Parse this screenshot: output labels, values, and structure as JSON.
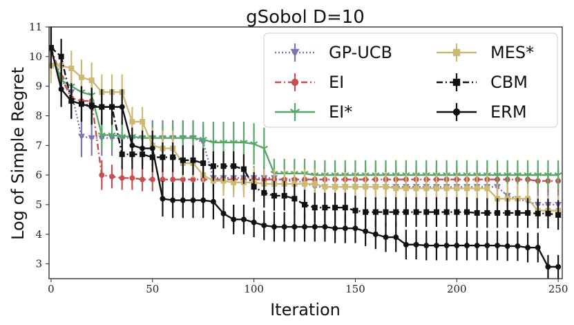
{
  "chart_data": {
    "type": "line",
    "title": "gSobol D=10",
    "xlabel": "Iteration",
    "ylabel": "Log of Simple Regret",
    "xlim": [
      -1,
      252
    ],
    "ylim": [
      2.5,
      11
    ],
    "xticks": [
      0,
      50,
      100,
      150,
      200,
      250
    ],
    "yticks": [
      3,
      4,
      5,
      6,
      7,
      8,
      9,
      10,
      11
    ],
    "legend_position": "top-right",
    "series": [
      {
        "name": "GP-UCB",
        "color": "#8172b2",
        "dash": "dotted",
        "marker": "triangle-down",
        "x": [
          0,
          5,
          10,
          15,
          20,
          25,
          30,
          35,
          40,
          45,
          50,
          55,
          60,
          65,
          70,
          75,
          80,
          85,
          90,
          95,
          100,
          105,
          110,
          115,
          120,
          125,
          130,
          135,
          140,
          145,
          150,
          155,
          160,
          165,
          170,
          175,
          180,
          185,
          190,
          195,
          200,
          205,
          210,
          215,
          220,
          225,
          230,
          235,
          240,
          245,
          250
        ],
        "y": [
          10.2,
          9.2,
          8.8,
          7.3,
          7.25,
          7.25,
          7.25,
          7.25,
          7.25,
          7.25,
          7.25,
          7.25,
          7.25,
          7.25,
          7.25,
          7.1,
          5.9,
          5.9,
          5.9,
          5.9,
          5.9,
          5.9,
          5.9,
          5.8,
          5.8,
          5.75,
          5.6,
          5.6,
          5.6,
          5.6,
          5.6,
          5.6,
          5.6,
          5.6,
          5.6,
          5.6,
          5.6,
          5.6,
          5.6,
          5.6,
          5.6,
          5.6,
          5.6,
          5.6,
          5.6,
          5.3,
          5.2,
          5.1,
          5.0,
          5.0,
          5.0
        ],
        "err": [
          0.8,
          0.6,
          0.7,
          0.7,
          0.6,
          0.6,
          0.6,
          0.6,
          0.6,
          0.6,
          0.6,
          0.6,
          0.6,
          0.6,
          0.6,
          0.6,
          0.4,
          0.4,
          0.4,
          0.4,
          0.4,
          0.4,
          0.4,
          0.4,
          0.4,
          0.4,
          0.4,
          0.4,
          0.4,
          0.4,
          0.4,
          0.4,
          0.4,
          0.4,
          0.4,
          0.4,
          0.4,
          0.4,
          0.4,
          0.4,
          0.4,
          0.4,
          0.4,
          0.4,
          0.4,
          0.4,
          0.4,
          0.4,
          0.4,
          0.4,
          0.4
        ]
      },
      {
        "name": "EI",
        "color": "#c44e52",
        "dash": "dashdot",
        "marker": "circle",
        "x": [
          0,
          5,
          10,
          15,
          20,
          25,
          30,
          35,
          40,
          45,
          50,
          55,
          60,
          65,
          70,
          75,
          80,
          85,
          90,
          95,
          100,
          105,
          110,
          115,
          120,
          125,
          130,
          135,
          140,
          145,
          150,
          155,
          160,
          165,
          170,
          175,
          180,
          185,
          190,
          195,
          200,
          205,
          210,
          215,
          220,
          225,
          230,
          235,
          240,
          245,
          250
        ],
        "y": [
          10.3,
          9.3,
          8.6,
          8.5,
          8.5,
          6.0,
          5.95,
          5.9,
          5.9,
          5.85,
          5.85,
          5.85,
          5.85,
          5.85,
          5.85,
          5.85,
          5.85,
          5.85,
          5.85,
          5.85,
          5.85,
          5.85,
          5.85,
          5.85,
          5.85,
          5.85,
          5.85,
          5.85,
          5.85,
          5.85,
          5.85,
          5.85,
          5.85,
          5.85,
          5.85,
          5.85,
          5.85,
          5.85,
          5.85,
          5.85,
          5.85,
          5.85,
          5.85,
          5.85,
          5.85,
          5.85,
          5.85,
          5.85,
          5.8,
          5.8,
          5.8
        ],
        "err": [
          0.6,
          0.5,
          0.5,
          0.5,
          0.5,
          0.5,
          0.4,
          0.4,
          0.4,
          0.4,
          0.4,
          0.4,
          0.4,
          0.4,
          0.4,
          0.4,
          0.4,
          0.4,
          0.4,
          0.4,
          0.4,
          0.4,
          0.4,
          0.4,
          0.4,
          0.4,
          0.4,
          0.4,
          0.4,
          0.4,
          0.4,
          0.4,
          0.4,
          0.4,
          0.4,
          0.4,
          0.4,
          0.4,
          0.4,
          0.4,
          0.4,
          0.4,
          0.4,
          0.4,
          0.4,
          0.4,
          0.4,
          0.4,
          0.4,
          0.4,
          0.4
        ]
      },
      {
        "name": "EI*",
        "color": "#55a868",
        "dash": "solid",
        "marker": "tri",
        "x": [
          0,
          5,
          10,
          15,
          20,
          25,
          30,
          35,
          40,
          45,
          50,
          55,
          60,
          65,
          70,
          75,
          80,
          85,
          90,
          95,
          100,
          105,
          110,
          115,
          120,
          125,
          130,
          135,
          140,
          145,
          150,
          155,
          160,
          165,
          170,
          175,
          180,
          185,
          190,
          195,
          200,
          205,
          210,
          215,
          220,
          225,
          230,
          235,
          240,
          245,
          250
        ],
        "y": [
          10.2,
          9.2,
          9.0,
          8.8,
          8.7,
          7.35,
          7.35,
          7.3,
          7.3,
          7.25,
          7.25,
          7.25,
          7.25,
          7.25,
          7.25,
          7.2,
          7.1,
          7.1,
          7.1,
          7.1,
          7.05,
          6.9,
          6.05,
          6.05,
          6.05,
          6.05,
          6.0,
          6.0,
          6.0,
          6.0,
          6.0,
          6.0,
          6.0,
          6.0,
          6.0,
          6.0,
          6.0,
          6.0,
          6.0,
          6.0,
          6.0,
          6.0,
          6.0,
          6.0,
          6.0,
          6.0,
          6.0,
          6.0,
          6.0,
          6.0,
          6.0
        ],
        "err": [
          0.6,
          0.5,
          0.5,
          0.5,
          0.5,
          0.5,
          0.5,
          0.5,
          0.5,
          0.5,
          0.5,
          0.5,
          0.5,
          0.5,
          0.5,
          0.6,
          0.7,
          0.7,
          0.7,
          0.7,
          0.7,
          0.7,
          0.5,
          0.5,
          0.5,
          0.5,
          0.5,
          0.5,
          0.5,
          0.5,
          0.5,
          0.5,
          0.5,
          0.5,
          0.5,
          0.5,
          0.5,
          0.5,
          0.5,
          0.5,
          0.5,
          0.5,
          0.5,
          0.5,
          0.5,
          0.5,
          0.5,
          0.5,
          0.5,
          0.5,
          0.5
        ]
      },
      {
        "name": "MES*",
        "color": "#ccb974",
        "dash": "solid",
        "marker": "square",
        "x": [
          0,
          5,
          10,
          15,
          20,
          25,
          30,
          35,
          40,
          45,
          50,
          55,
          60,
          65,
          70,
          75,
          80,
          85,
          90,
          95,
          100,
          105,
          110,
          115,
          120,
          125,
          130,
          135,
          140,
          145,
          150,
          155,
          160,
          165,
          170,
          175,
          180,
          185,
          190,
          195,
          200,
          205,
          210,
          215,
          220,
          225,
          230,
          235,
          240,
          245,
          250
        ],
        "y": [
          9.7,
          9.7,
          9.6,
          9.3,
          9.2,
          8.8,
          8.8,
          8.8,
          7.8,
          7.8,
          7.0,
          6.9,
          6.9,
          6.4,
          6.4,
          6.0,
          5.8,
          5.8,
          5.75,
          5.75,
          5.75,
          5.7,
          5.7,
          5.7,
          5.7,
          5.7,
          5.7,
          5.6,
          5.6,
          5.6,
          5.6,
          5.6,
          5.6,
          5.6,
          5.55,
          5.55,
          5.55,
          5.55,
          5.55,
          5.55,
          5.55,
          5.55,
          5.55,
          5.55,
          5.2,
          5.2,
          5.2,
          5.2,
          4.8,
          4.8,
          4.8
        ],
        "err": [
          0.6,
          0.6,
          0.6,
          0.6,
          0.6,
          0.6,
          0.6,
          0.6,
          0.5,
          0.5,
          0.6,
          0.6,
          0.6,
          0.5,
          0.5,
          0.5,
          0.5,
          0.5,
          0.5,
          0.5,
          0.5,
          0.5,
          0.5,
          0.5,
          0.5,
          0.5,
          0.5,
          0.5,
          0.5,
          0.5,
          0.5,
          0.5,
          0.5,
          0.5,
          0.5,
          0.5,
          0.5,
          0.5,
          0.5,
          0.5,
          0.5,
          0.5,
          0.5,
          0.5,
          0.5,
          0.5,
          0.5,
          0.5,
          0.5,
          0.5,
          0.5
        ]
      },
      {
        "name": "CBM",
        "color": "#111111",
        "dash": "dashdot",
        "marker": "square",
        "x": [
          0,
          5,
          10,
          15,
          20,
          25,
          30,
          35,
          40,
          45,
          50,
          55,
          60,
          65,
          70,
          75,
          80,
          85,
          90,
          95,
          100,
          105,
          110,
          115,
          120,
          125,
          130,
          135,
          140,
          145,
          150,
          155,
          160,
          165,
          170,
          175,
          180,
          185,
          190,
          195,
          200,
          205,
          210,
          215,
          220,
          225,
          230,
          235,
          240,
          245,
          250
        ],
        "y": [
          10.3,
          10.0,
          8.5,
          8.4,
          8.35,
          8.3,
          8.3,
          6.7,
          6.7,
          6.7,
          6.6,
          6.6,
          6.6,
          6.5,
          6.5,
          6.4,
          6.3,
          6.3,
          6.3,
          6.2,
          5.6,
          5.4,
          5.3,
          5.3,
          5.2,
          5.0,
          4.9,
          4.9,
          4.9,
          4.9,
          4.8,
          4.75,
          4.75,
          4.75,
          4.75,
          4.75,
          4.75,
          4.75,
          4.75,
          4.75,
          4.75,
          4.75,
          4.72,
          4.72,
          4.72,
          4.72,
          4.72,
          4.72,
          4.7,
          4.7,
          4.65
        ],
        "err": [
          0.7,
          0.6,
          0.6,
          0.6,
          0.6,
          0.6,
          0.6,
          0.5,
          0.5,
          0.5,
          0.5,
          0.5,
          0.5,
          0.5,
          0.5,
          0.5,
          0.5,
          0.5,
          0.5,
          0.5,
          0.5,
          0.5,
          0.5,
          0.5,
          0.5,
          0.5,
          0.5,
          0.5,
          0.5,
          0.5,
          0.5,
          0.5,
          0.5,
          0.5,
          0.5,
          0.5,
          0.5,
          0.5,
          0.5,
          0.5,
          0.5,
          0.5,
          0.5,
          0.5,
          0.5,
          0.5,
          0.5,
          0.5,
          0.5,
          0.5,
          0.5
        ]
      },
      {
        "name": "ERM",
        "color": "#111111",
        "dash": "solid",
        "marker": "circle",
        "x": [
          0,
          5,
          10,
          15,
          20,
          25,
          30,
          35,
          40,
          45,
          50,
          55,
          60,
          65,
          70,
          75,
          80,
          85,
          90,
          95,
          100,
          105,
          110,
          115,
          120,
          125,
          130,
          135,
          140,
          145,
          150,
          155,
          160,
          165,
          170,
          175,
          180,
          185,
          190,
          195,
          200,
          205,
          210,
          215,
          220,
          225,
          230,
          235,
          240,
          245,
          250
        ],
        "y": [
          10.3,
          8.9,
          8.5,
          8.4,
          8.3,
          8.3,
          8.3,
          8.3,
          7.0,
          6.9,
          6.9,
          5.2,
          5.15,
          5.15,
          5.15,
          5.15,
          5.1,
          4.7,
          4.5,
          4.5,
          4.4,
          4.3,
          4.25,
          4.25,
          4.25,
          4.25,
          4.25,
          4.25,
          4.2,
          4.2,
          4.2,
          4.1,
          4.0,
          3.9,
          3.9,
          3.65,
          3.65,
          3.62,
          3.62,
          3.62,
          3.62,
          3.62,
          3.62,
          3.62,
          3.62,
          3.6,
          3.6,
          3.55,
          3.55,
          2.9,
          2.9
        ],
        "err": [
          0.7,
          0.6,
          0.6,
          0.6,
          0.6,
          0.6,
          0.6,
          0.6,
          0.6,
          0.6,
          0.6,
          0.6,
          0.6,
          0.6,
          0.6,
          0.6,
          0.6,
          0.5,
          0.5,
          0.5,
          0.5,
          0.5,
          0.5,
          0.5,
          0.5,
          0.5,
          0.5,
          0.5,
          0.5,
          0.5,
          0.5,
          0.5,
          0.5,
          0.5,
          0.5,
          0.5,
          0.5,
          0.5,
          0.5,
          0.5,
          0.5,
          0.5,
          0.5,
          0.5,
          0.5,
          0.5,
          0.5,
          0.5,
          0.5,
          0.4,
          0.4
        ]
      }
    ]
  }
}
